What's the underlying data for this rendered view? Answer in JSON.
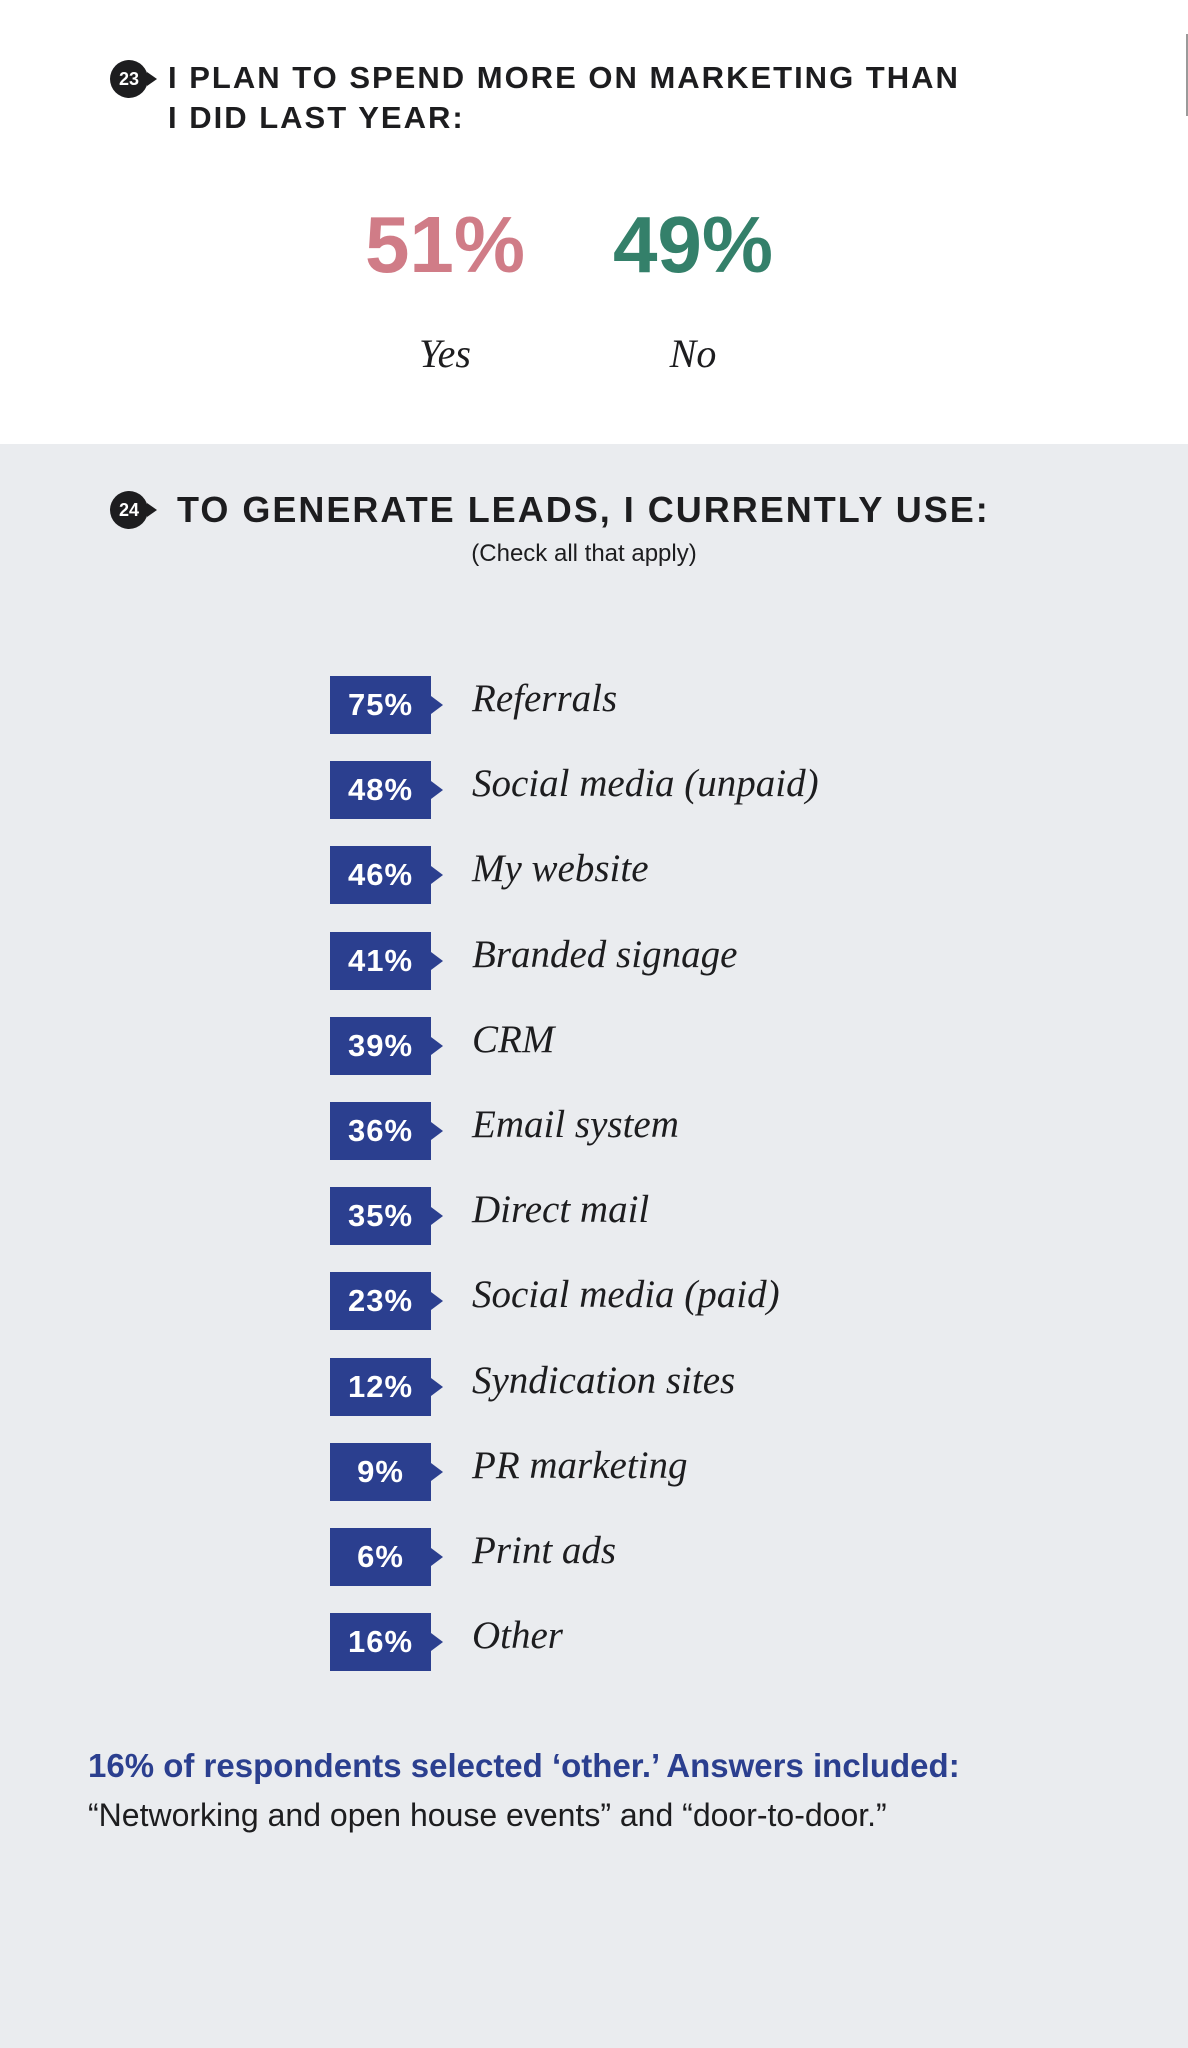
{
  "q23": {
    "number": "23",
    "title": "I PLAN TO SPEND MORE ON MARKETING THAN I DID LAST YEAR:",
    "yes_value": "51%",
    "yes_label": "Yes",
    "no_value": "49%",
    "no_label": "No"
  },
  "q24": {
    "number": "24",
    "title": "TO GENERATE LEADS, I CURRENTLY USE:",
    "subtitle": "(Check all that apply)",
    "note_bold": "16% of respondents selected ‘other.’ Answers included:",
    "note_text": "“Networking and open house events” and “door-to-door.”"
  },
  "colors": {
    "yes": "#d07c87",
    "no": "#34806a",
    "badge": "#2b3f8f",
    "top_background": "#ffffff",
    "bottom_background": "#eaecef"
  },
  "chart_data": [
    {
      "type": "pie",
      "title": "I PLAN TO SPEND MORE ON MARKETING THAN I DID LAST YEAR:",
      "categories": [
        "Yes",
        "No"
      ],
      "values": [
        51,
        49
      ]
    },
    {
      "type": "table",
      "title": "TO GENERATE LEADS, I CURRENTLY USE:",
      "subtitle": "(Check all that apply)",
      "categories": [
        "Referrals",
        "Social media (unpaid)",
        "My website",
        "Branded signage",
        "CRM",
        "Email system",
        "Direct mail",
        "Social media (paid)",
        "Syndication sites",
        "PR marketing",
        "Print ads",
        "Other"
      ],
      "values": [
        75,
        48,
        46,
        41,
        39,
        36,
        35,
        23,
        12,
        9,
        6,
        16
      ],
      "labels": [
        "75%",
        "48%",
        "46%",
        "41%",
        "39%",
        "36%",
        "35%",
        "23%",
        "12%",
        "9%",
        "6%",
        "16%"
      ]
    }
  ]
}
